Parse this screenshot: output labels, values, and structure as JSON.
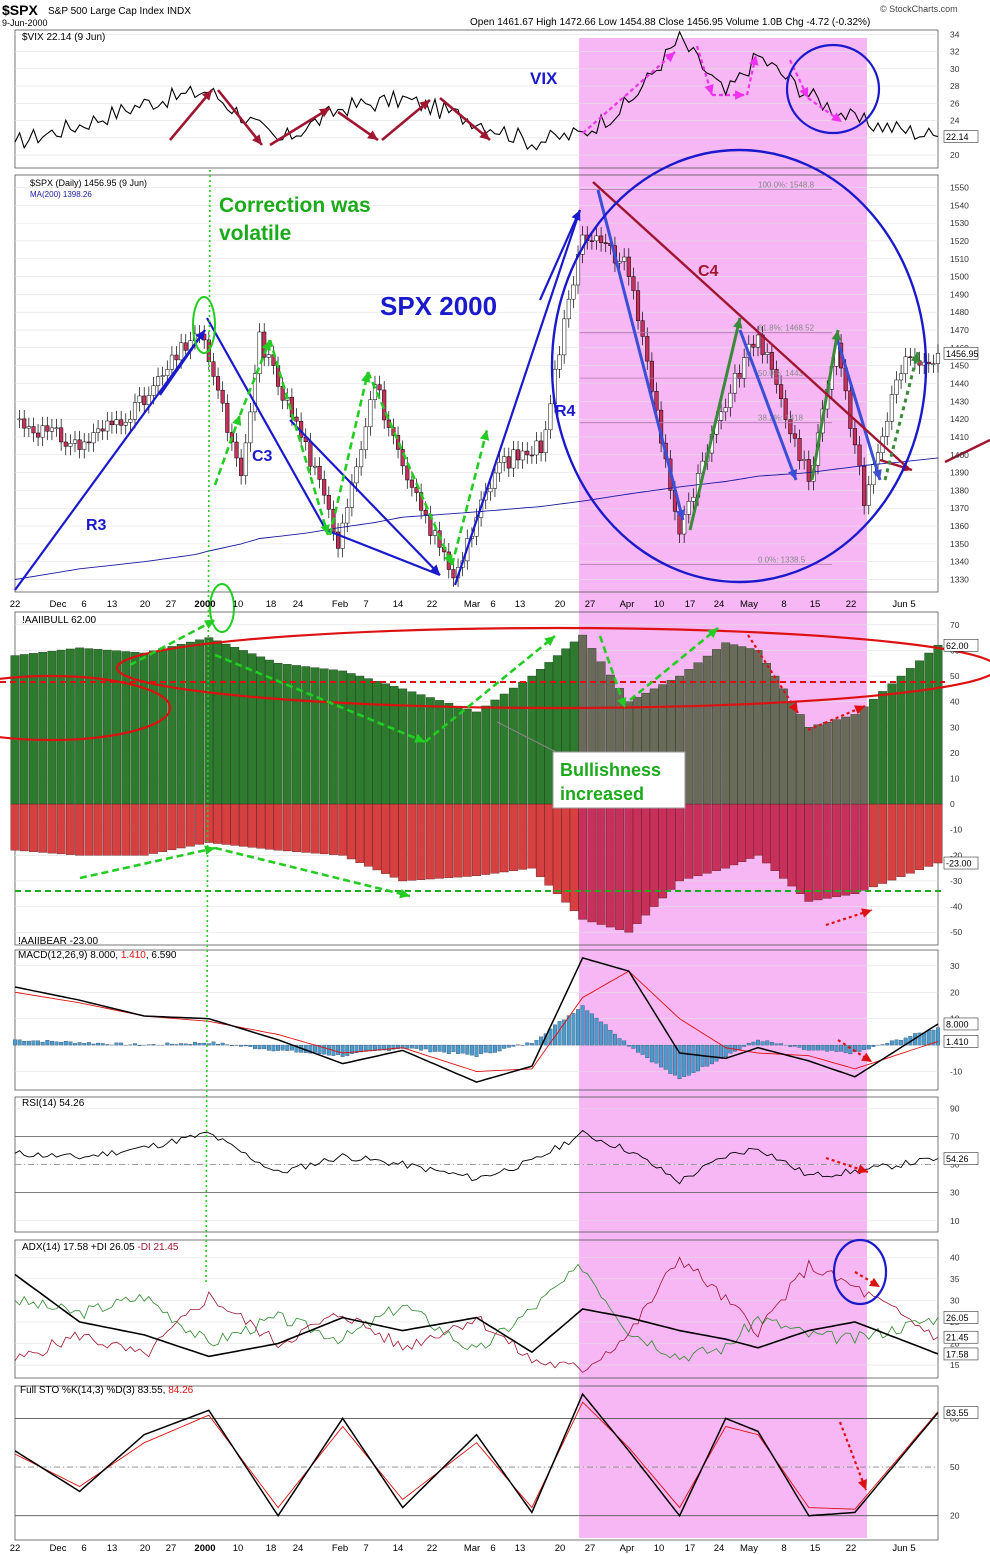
{
  "header": {
    "symbol": "$SPX",
    "name": "S&P 500 Large Cap Index",
    "exchange": "INDX",
    "date": "9-Jun-2000",
    "ohlc": "Open 1461.67  High 1472.66  Low 1454.88  Close 1456.95  Volume 1.0B  Chg -4.72 (-0.32%)",
    "copyright": "© StockCharts.com"
  },
  "panels": {
    "vix": {
      "legend": "$VIX 22.14 (9 Jun)",
      "label": "VIX",
      "last": "22.14",
      "ticks": [
        20,
        22,
        24,
        26,
        28,
        30,
        32,
        34
      ]
    },
    "spx": {
      "legend": "$SPX (Daily) 1456.95 (9 Jun)",
      "ma_legend": "MA(200) 1398.26",
      "title": "SPX 2000",
      "last": "1456.95",
      "ma_last": "1398.26",
      "ticks": [
        1330,
        1340,
        1350,
        1360,
        1370,
        1380,
        1390,
        1400,
        1410,
        1420,
        1430,
        1440,
        1450,
        1460,
        1470,
        1480,
        1490,
        1500,
        1510,
        1520,
        1530,
        1540,
        1550
      ],
      "fib": [
        "100.0%: 1548.8",
        "61.8%: 1468.52",
        "50.0%: 1443",
        "38.2%: 1418",
        "0.0%: 1338.5"
      ]
    },
    "aaii": {
      "legend": "!AAIIBULL 62.00",
      "bear_legend": "!AAIIBEAR -23.00",
      "last_bull": "62.00",
      "last_bear": "-23.00",
      "ticks": [
        -50,
        -40,
        -30,
        -20,
        -10,
        0,
        10,
        20,
        30,
        40,
        50,
        60,
        70
      ]
    },
    "macd": {
      "legend_a": "MACD(12,26,9) 8.000, ",
      "legend_b": "1.410",
      "legend_c": ", 6.590",
      "last_a": "8.000",
      "last_b": "1.410",
      "ticks": [
        -10,
        0,
        10,
        20,
        30
      ]
    },
    "rsi": {
      "legend": "RSI(14) 54.26",
      "last": "54.26",
      "ticks": [
        10,
        30,
        50,
        70,
        90
      ]
    },
    "adx": {
      "legend_a": "ADX(14) 17.58 +DI 26.05 ",
      "legend_b": "-DI 21.45",
      "last_adx": "17.58",
      "last_pdi": "26.05",
      "last_mdi": "21.45",
      "ticks": [
        15,
        20,
        25,
        30,
        35,
        40
      ]
    },
    "sto": {
      "legend_a": "Full STO %K(14,3) %D(3) 83.55, ",
      "legend_b": "84.26",
      "last_k": "83.55",
      "last_d": "84.26",
      "ticks": [
        20,
        50,
        80
      ]
    }
  },
  "annotations": {
    "correction": [
      "Correction was",
      "volatile"
    ],
    "bullishness": [
      "Bullishness",
      "increased"
    ],
    "R3": "R3",
    "C3": "C3",
    "R4": "R4",
    "C4": "C4"
  },
  "x_axis": [
    "22",
    "Dec",
    "6",
    "13",
    "20",
    "27",
    "2000",
    "10",
    "18",
    "24",
    "Feb",
    "7",
    "14",
    "22",
    "Mar",
    "6",
    "13",
    "20",
    "27",
    "Apr",
    "10",
    "17",
    "24",
    "May",
    "8",
    "15",
    "22",
    "Jun",
    "5"
  ],
  "colors": {
    "highlight": "#f7b6f4",
    "up": "#ffffff",
    "down": "#c8305c",
    "bull": "#2e7a2e",
    "bear": "#d64040",
    "macd_hist": "#4a9ccc",
    "blue": "#1a1acc",
    "green": "#22cc22",
    "magenta": "#ee33ee",
    "red": "#dd1111",
    "maroon": "#a01530"
  },
  "chart_data": [
    {
      "type": "line",
      "title": "$VIX 22.14 (9 Jun)",
      "x": [
        "1999-11-22",
        "1999-12-06",
        "1999-12-20",
        "2000-01-03",
        "2000-01-18",
        "2000-02-01",
        "2000-02-14",
        "2000-03-01",
        "2000-03-13",
        "2000-03-24",
        "2000-04-03",
        "2000-04-14",
        "2000-04-24",
        "2000-05-01",
        "2000-05-12",
        "2000-05-22",
        "2000-06-09"
      ],
      "series": [
        {
          "name": "$VIX",
          "values": [
            21.5,
            23.5,
            26,
            27.5,
            21.5,
            25.5,
            26.5,
            24,
            21.5,
            22.5,
            26,
            33.5,
            27,
            31.5,
            27,
            24,
            22.14
          ]
        }
      ]
    },
    {
      "type": "line",
      "title": "$SPX (Daily) 1456.95 (9 Jun)",
      "x": [
        "1999-11-22",
        "1999-12-06",
        "1999-12-20",
        "1999-12-31",
        "2000-01-03",
        "2000-01-10",
        "2000-01-14",
        "2000-01-24",
        "2000-01-31",
        "2000-02-08",
        "2000-02-14",
        "2000-02-25",
        "2000-03-06",
        "2000-03-15",
        "2000-03-24",
        "2000-04-03",
        "2000-04-14",
        "2000-04-24",
        "2000-05-01",
        "2000-05-12",
        "2000-05-18",
        "2000-05-24",
        "2000-06-01",
        "2000-06-09"
      ],
      "series": [
        {
          "name": "$SPX",
          "values": [
            1420,
            1405,
            1430,
            1469,
            1455,
            1385,
            1465,
            1405,
            1352,
            1441,
            1390,
            1333,
            1395,
            1405,
            1527,
            1505,
            1356,
            1430,
            1468,
            1385,
            1465,
            1374,
            1450,
            1456.95
          ]
        },
        {
          "name": "MA(200)",
          "values": [
            1330,
            1336,
            1340,
            1344,
            1346,
            1350,
            1353,
            1356,
            1359,
            1362,
            1365,
            1367,
            1369,
            1371,
            1374,
            1378,
            1382,
            1385,
            1388,
            1390,
            1392,
            1394,
            1396,
            1398.26
          ]
        }
      ]
    },
    {
      "type": "bar",
      "title": "!AAIIBULL 62.00",
      "categories": [
        "1999-11-22",
        "1999-12-06",
        "1999-12-20",
        "2000-01-03",
        "2000-01-18",
        "2000-02-01",
        "2000-02-14",
        "2000-03-01",
        "2000-03-13",
        "2000-03-24",
        "2000-04-03",
        "2000-04-14",
        "2000-04-24",
        "2000-05-01",
        "2000-05-12",
        "2000-05-22",
        "2000-06-09"
      ],
      "series": [
        {
          "name": "!AAIIBULL",
          "values": [
            58,
            61,
            59,
            65,
            55,
            52,
            45,
            36,
            50,
            66,
            40,
            50,
            63,
            60,
            30,
            35,
            62
          ]
        },
        {
          "name": "!AAIIBEAR",
          "values": [
            -18,
            -20,
            -20,
            -15,
            -18,
            -20,
            -30,
            -28,
            -25,
            -45,
            -50,
            -30,
            -25,
            -20,
            -38,
            -35,
            -23
          ]
        }
      ]
    },
    {
      "type": "line",
      "title": "MACD(12,26,9) 8.000, 1.410, 6.590",
      "x": [
        "1999-11-22",
        "1999-12-06",
        "1999-12-20",
        "2000-01-03",
        "2000-01-18",
        "2000-02-01",
        "2000-02-14",
        "2000-03-01",
        "2000-03-13",
        "2000-03-24",
        "2000-04-03",
        "2000-04-14",
        "2000-04-24",
        "2000-05-01",
        "2000-05-12",
        "2000-05-22",
        "2000-06-09"
      ],
      "series": [
        {
          "name": "MACD",
          "values": [
            22,
            17,
            11,
            10,
            2,
            -7,
            -2,
            -14,
            -8,
            33,
            28,
            -3,
            -5,
            -1,
            -6,
            -12,
            8.0
          ]
        },
        {
          "name": "Signal",
          "values": [
            20,
            16,
            11,
            9,
            4,
            -3,
            -1,
            -10,
            -9,
            18,
            28,
            10,
            -1,
            -3,
            -4,
            -9,
            1.41
          ]
        },
        {
          "name": "Histogram",
          "values": [
            2,
            1,
            0,
            1,
            -2,
            -4,
            -1,
            -4,
            1,
            15,
            0,
            -13,
            -4,
            2,
            -2,
            -3,
            6.59
          ]
        }
      ]
    },
    {
      "type": "line",
      "title": "RSI(14) 54.26",
      "x": [
        "1999-11-22",
        "1999-12-06",
        "1999-12-20",
        "2000-01-03",
        "2000-01-18",
        "2000-02-01",
        "2000-02-14",
        "2000-03-01",
        "2000-03-13",
        "2000-03-24",
        "2000-04-03",
        "2000-04-14",
        "2000-04-24",
        "2000-05-01",
        "2000-05-12",
        "2000-05-22",
        "2000-06-09"
      ],
      "series": [
        {
          "name": "RSI(14)",
          "values": [
            58,
            55,
            62,
            72,
            44,
            56,
            50,
            40,
            52,
            72,
            60,
            38,
            56,
            62,
            42,
            45,
            54.26
          ]
        }
      ]
    },
    {
      "type": "line",
      "title": "ADX(14) 17.58 +DI 26.05 -DI 21.45",
      "x": [
        "1999-11-22",
        "1999-12-06",
        "1999-12-20",
        "2000-01-03",
        "2000-01-18",
        "2000-02-01",
        "2000-02-14",
        "2000-03-01",
        "2000-03-13",
        "2000-03-24",
        "2000-04-03",
        "2000-04-14",
        "2000-04-24",
        "2000-05-01",
        "2000-05-12",
        "2000-05-22",
        "2000-06-09"
      ],
      "series": [
        {
          "name": "ADX",
          "values": [
            36,
            25,
            22,
            17,
            20,
            26,
            23,
            26,
            18,
            28,
            26,
            23,
            21,
            19,
            23,
            25,
            17.58
          ]
        },
        {
          "name": "+DI",
          "values": [
            30,
            27,
            31,
            20,
            26,
            21,
            29,
            18,
            28,
            38,
            23,
            17,
            19,
            26,
            22,
            21,
            26.05
          ]
        },
        {
          "name": "-DI",
          "values": [
            16,
            22,
            17,
            31,
            20,
            27,
            19,
            26,
            16,
            14,
            22,
            40,
            30,
            23,
            38,
            33,
            21.45
          ]
        }
      ]
    },
    {
      "type": "line",
      "title": "Full STO %K(14,3) %D(3) 83.55, 84.26",
      "x": [
        "1999-11-22",
        "1999-12-06",
        "1999-12-20",
        "2000-01-03",
        "2000-01-18",
        "2000-02-01",
        "2000-02-14",
        "2000-03-01",
        "2000-03-13",
        "2000-03-24",
        "2000-04-03",
        "2000-04-14",
        "2000-04-24",
        "2000-05-01",
        "2000-05-12",
        "2000-05-22",
        "2000-06-09"
      ],
      "series": [
        {
          "name": "%K",
          "values": [
            60,
            35,
            70,
            85,
            20,
            80,
            25,
            70,
            22,
            95,
            60,
            20,
            80,
            72,
            20,
            22,
            83.55
          ]
        },
        {
          "name": "%D",
          "values": [
            58,
            38,
            65,
            82,
            25,
            75,
            30,
            65,
            25,
            90,
            62,
            25,
            75,
            70,
            25,
            24,
            84.26
          ]
        }
      ]
    }
  ]
}
